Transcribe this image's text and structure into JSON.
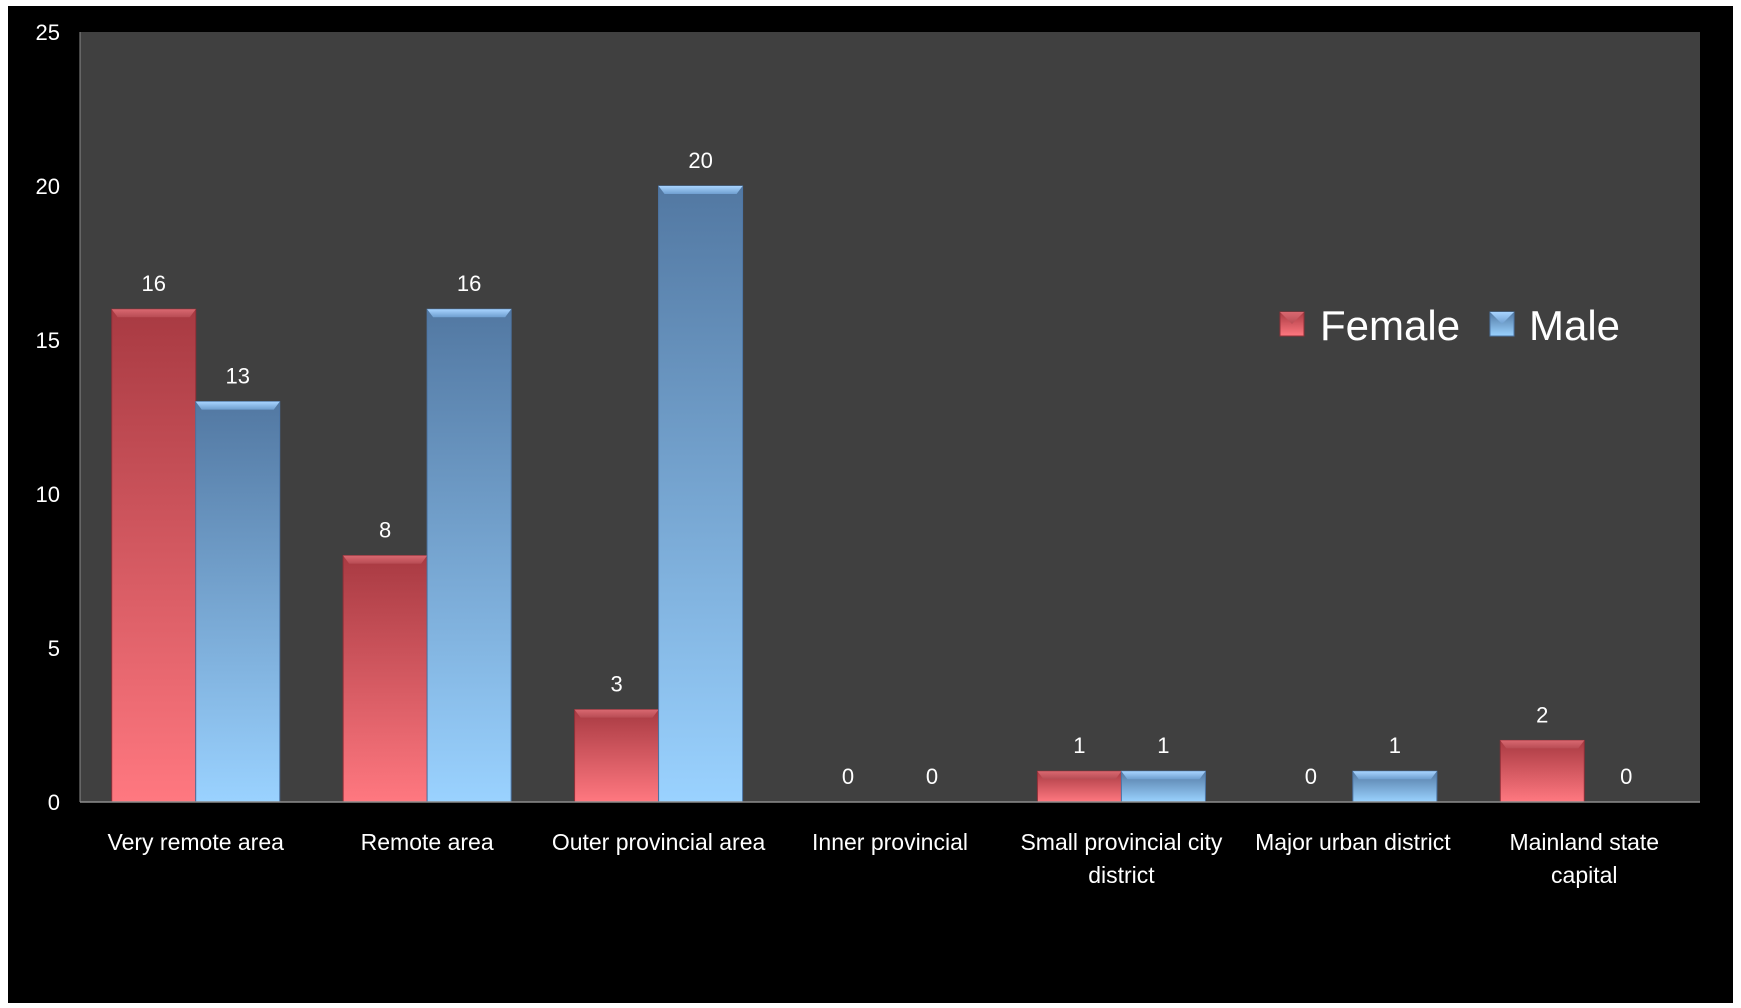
{
  "chart_data": {
    "type": "bar",
    "title": "",
    "xlabel": "",
    "ylabel": "",
    "ylim": [
      0,
      25
    ],
    "yticks": [
      0,
      5,
      10,
      15,
      20,
      25
    ],
    "grid": false,
    "legend_position": "right",
    "categories": [
      [
        "Very remote area"
      ],
      [
        "Remote area"
      ],
      [
        "Outer provincial area"
      ],
      [
        "Inner provincial"
      ],
      [
        "Small provincial city",
        "district"
      ],
      [
        "Major urban district"
      ],
      [
        "Mainland state",
        "capital"
      ]
    ],
    "series": [
      {
        "name": "Female",
        "values": [
          16,
          8,
          3,
          0,
          1,
          0,
          2
        ],
        "color": "#e86870"
      },
      {
        "name": "Male",
        "values": [
          13,
          16,
          20,
          0,
          1,
          1,
          0
        ],
        "color": "#7fb6ee"
      }
    ],
    "data_labels": true,
    "plot_background": "#404040",
    "page_background": "#000000",
    "text_color": "#ffffff"
  }
}
